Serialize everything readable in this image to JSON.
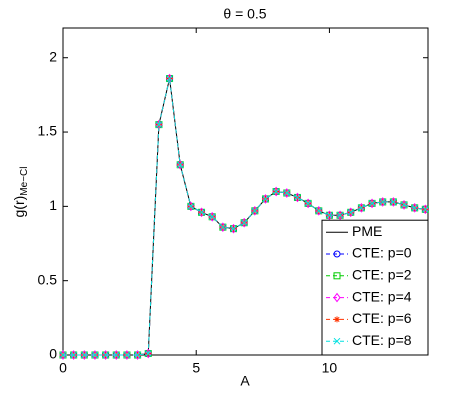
{
  "chart_data": {
    "type": "line",
    "title": "θ = 0.5",
    "x_label": "A",
    "y_label": "g(r)",
    "y_label_subscript": "Me−Cl",
    "x": [
      0,
      0.4,
      0.8,
      1.2,
      1.6,
      2.0,
      2.4,
      2.8,
      3.2,
      3.6,
      4.0,
      4.4,
      4.8,
      5.2,
      5.6,
      6.0,
      6.4,
      6.8,
      7.2,
      7.6,
      8.0,
      8.4,
      8.8,
      9.2,
      9.6,
      10.0,
      10.4,
      10.8,
      11.2,
      11.6,
      12.0,
      12.4,
      12.8,
      13.2,
      13.6
    ],
    "series": [
      {
        "name": "PME",
        "color": "#000000",
        "linestyle": "solid",
        "marker": "none",
        "values": [
          0,
          0,
          0,
          0,
          0,
          0,
          0,
          0,
          0.01,
          1.55,
          1.86,
          1.28,
          1.0,
          0.96,
          0.93,
          0.86,
          0.85,
          0.89,
          0.97,
          1.05,
          1.1,
          1.09,
          1.06,
          1.02,
          0.97,
          0.94,
          0.94,
          0.96,
          0.99,
          1.02,
          1.03,
          1.03,
          1.01,
          0.99,
          0.98
        ]
      },
      {
        "name": "CTE: p=0",
        "color": "#0000ff",
        "linestyle": "dashed",
        "marker": "o",
        "values": [
          0,
          0,
          0,
          0,
          0,
          0,
          0,
          0,
          0.01,
          1.55,
          1.86,
          1.28,
          1.0,
          0.96,
          0.93,
          0.86,
          0.85,
          0.89,
          0.97,
          1.05,
          1.1,
          1.09,
          1.06,
          1.02,
          0.97,
          0.94,
          0.94,
          0.96,
          0.99,
          1.02,
          1.03,
          1.03,
          1.01,
          0.99,
          0.98
        ]
      },
      {
        "name": "CTE: p=2",
        "color": "#00cc00",
        "linestyle": "dashed",
        "marker": "s",
        "values": [
          0,
          0,
          0,
          0,
          0,
          0,
          0,
          0,
          0.01,
          1.55,
          1.86,
          1.28,
          1.0,
          0.96,
          0.93,
          0.86,
          0.85,
          0.89,
          0.97,
          1.05,
          1.1,
          1.09,
          1.06,
          1.02,
          0.97,
          0.94,
          0.94,
          0.96,
          0.99,
          1.02,
          1.03,
          1.03,
          1.01,
          0.99,
          0.98
        ]
      },
      {
        "name": "CTE: p=4",
        "color": "#ff00ff",
        "linestyle": "dashed",
        "marker": "d",
        "values": [
          0,
          0,
          0,
          0,
          0,
          0,
          0,
          0,
          0.01,
          1.55,
          1.86,
          1.28,
          1.0,
          0.96,
          0.93,
          0.86,
          0.85,
          0.89,
          0.97,
          1.05,
          1.1,
          1.09,
          1.06,
          1.02,
          0.97,
          0.94,
          0.94,
          0.96,
          0.99,
          1.02,
          1.03,
          1.03,
          1.01,
          0.99,
          0.98
        ]
      },
      {
        "name": "CTE: p=6",
        "color": "#ff3300",
        "linestyle": "dashed",
        "marker": "*",
        "values": [
          0,
          0,
          0,
          0,
          0,
          0,
          0,
          0,
          0.01,
          1.55,
          1.86,
          1.28,
          1.0,
          0.96,
          0.93,
          0.86,
          0.85,
          0.89,
          0.97,
          1.05,
          1.1,
          1.09,
          1.06,
          1.02,
          0.97,
          0.94,
          0.94,
          0.96,
          0.99,
          1.02,
          1.03,
          1.03,
          1.01,
          0.99,
          0.98
        ]
      },
      {
        "name": "CTE: p=8",
        "color": "#00e0e0",
        "linestyle": "dashed",
        "marker": "x",
        "values": [
          0,
          0,
          0,
          0,
          0,
          0,
          0,
          0,
          0.01,
          1.55,
          1.86,
          1.28,
          1.0,
          0.96,
          0.93,
          0.86,
          0.85,
          0.89,
          0.97,
          1.05,
          1.1,
          1.09,
          1.06,
          1.02,
          0.97,
          0.94,
          0.94,
          0.96,
          0.99,
          1.02,
          1.03,
          1.03,
          1.01,
          0.99,
          0.98
        ]
      }
    ],
    "xlim": [
      0,
      13.7
    ],
    "ylim": [
      0,
      2.2
    ],
    "xticks": [
      0,
      5,
      10
    ],
    "yticks": [
      0,
      0.5,
      1,
      1.5,
      2
    ],
    "legend": "lower right"
  }
}
